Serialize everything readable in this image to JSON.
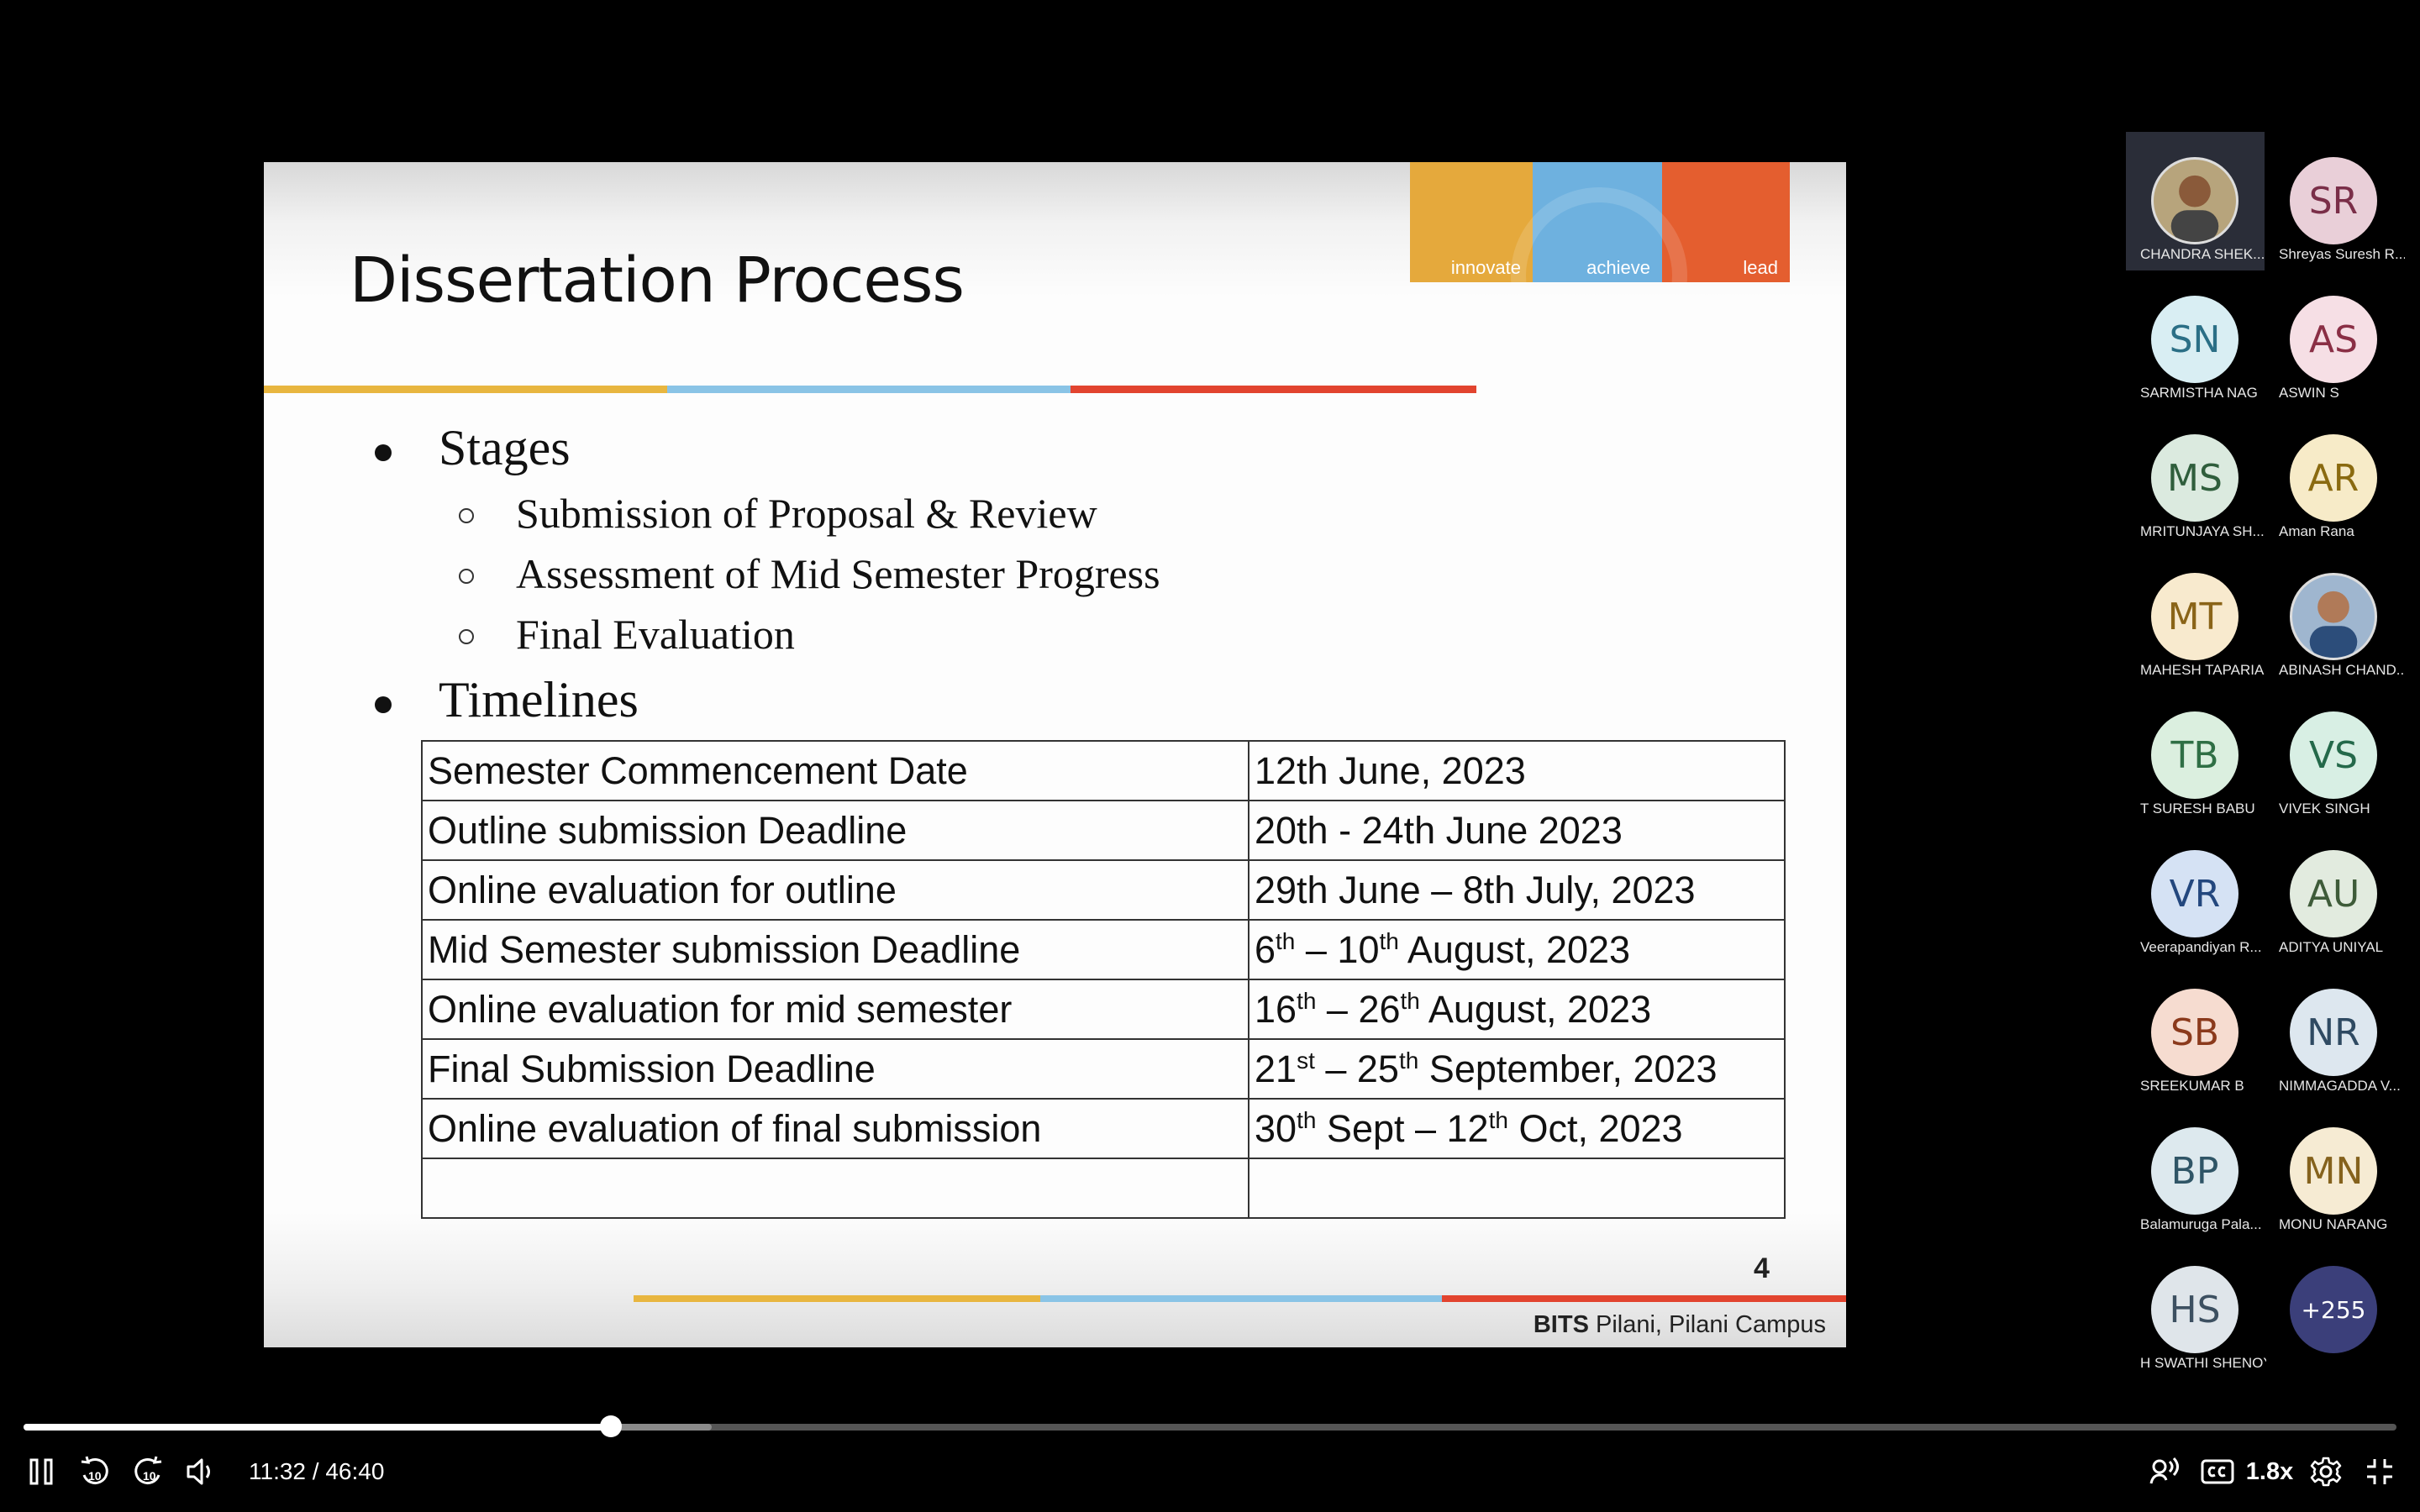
{
  "slide": {
    "title": "Dissertation Process",
    "logo_words": [
      "innovate",
      "achieve",
      "lead"
    ],
    "bullets": [
      {
        "label": "Stages",
        "sub": [
          "Submission of Proposal & Review",
          "Assessment of Mid Semester Progress",
          "Final Evaluation"
        ]
      },
      {
        "label": "Timelines"
      }
    ],
    "timeline": [
      {
        "event": "Semester Commencement Date",
        "date": "12th June, 2023"
      },
      {
        "event": "Outline submission Deadline",
        "date": "20th - 24th June 2023"
      },
      {
        "event": "Online evaluation for outline",
        "date": "29th June – 8th July, 2023"
      },
      {
        "event": "Mid Semester submission Deadline",
        "d1": "6",
        "s1": "th",
        "mid": " – 10",
        "s2": "th",
        "rest": " August, 2023"
      },
      {
        "event": "Online evaluation for mid semester",
        "d1": "16",
        "s1": "th",
        "mid": " – 26",
        "s2": "th",
        "rest": " August, 2023"
      },
      {
        "event": "Final Submission Deadline",
        "d1": "21",
        "s1": "st",
        "mid": " – 25",
        "s2": "th",
        "rest": " September, 2023"
      },
      {
        "event": "Online evaluation of final submission",
        "d1": "30",
        "s1": "th",
        "mid": " Sept – 12",
        "s2": "th",
        "rest": " Oct, 2023"
      },
      {
        "event": "",
        "date": ""
      }
    ],
    "page_number": "4",
    "footer_bold": "BITS",
    "footer_rest": " Pilani, Pilani Campus"
  },
  "participants": [
    {
      "initials": "",
      "name": "CHANDRA SHEK...",
      "photo": true,
      "active": true
    },
    {
      "initials": "SR",
      "name": "Shreyas Suresh R...",
      "bg": "#e9cfd8",
      "fg": "#7a2e48"
    },
    {
      "initials": "SN",
      "name": "SARMISTHA NAG",
      "bg": "#d9eef3",
      "fg": "#2b6f86"
    },
    {
      "initials": "AS",
      "name": "ASWIN S",
      "bg": "#f6dfe5",
      "fg": "#8a2f45"
    },
    {
      "initials": "MS",
      "name": "MRITUNJAYA SH...",
      "bg": "#dbeadf",
      "fg": "#2f5e3c"
    },
    {
      "initials": "AR",
      "name": "Aman Rana",
      "bg": "#f7ebc8",
      "fg": "#8a6a10"
    },
    {
      "initials": "MT",
      "name": "MAHESH TAPARIA",
      "bg": "#f8eace",
      "fg": "#8a6418"
    },
    {
      "initials": "",
      "name": "ABINASH CHAND...",
      "photo": true
    },
    {
      "initials": "TB",
      "name": "T SURESH BABU",
      "bg": "#dbefdf",
      "fg": "#2f6f45"
    },
    {
      "initials": "VS",
      "name": "VIVEK SINGH",
      "bg": "#d8efe4",
      "fg": "#24694a"
    },
    {
      "initials": "VR",
      "name": "Veerapandiyan R...",
      "bg": "#d5e2f4",
      "fg": "#23477e"
    },
    {
      "initials": "AU",
      "name": "ADITYA UNIYAL",
      "bg": "#e2ebdf",
      "fg": "#3e5b39"
    },
    {
      "initials": "SB",
      "name": "SREEKUMAR  B",
      "bg": "#f6dcd0",
      "fg": "#8b3a1c"
    },
    {
      "initials": "NR",
      "name": "NIMMAGADDA V...",
      "bg": "#dde7ef",
      "fg": "#2f4a62"
    },
    {
      "initials": "BP",
      "name": "Balamuruga Pala...",
      "bg": "#dde9ee",
      "fg": "#2f5566"
    },
    {
      "initials": "MN",
      "name": "MONU NARANG",
      "bg": "#f6ebd3",
      "fg": "#85621d"
    },
    {
      "initials": "HS",
      "name": "H SWATHI SHENOY",
      "bg": "#dfe5ea",
      "fg": "#3d5061"
    },
    {
      "initials": "+255",
      "name": "",
      "bg": "#3b3f7a",
      "fg": "#ffffff"
    }
  ],
  "player": {
    "time": "11:32 / 46:40",
    "speed": "1.8x",
    "progress": 0.2474,
    "buffered": 0.29,
    "skip_back": "10",
    "skip_forward": "10"
  }
}
